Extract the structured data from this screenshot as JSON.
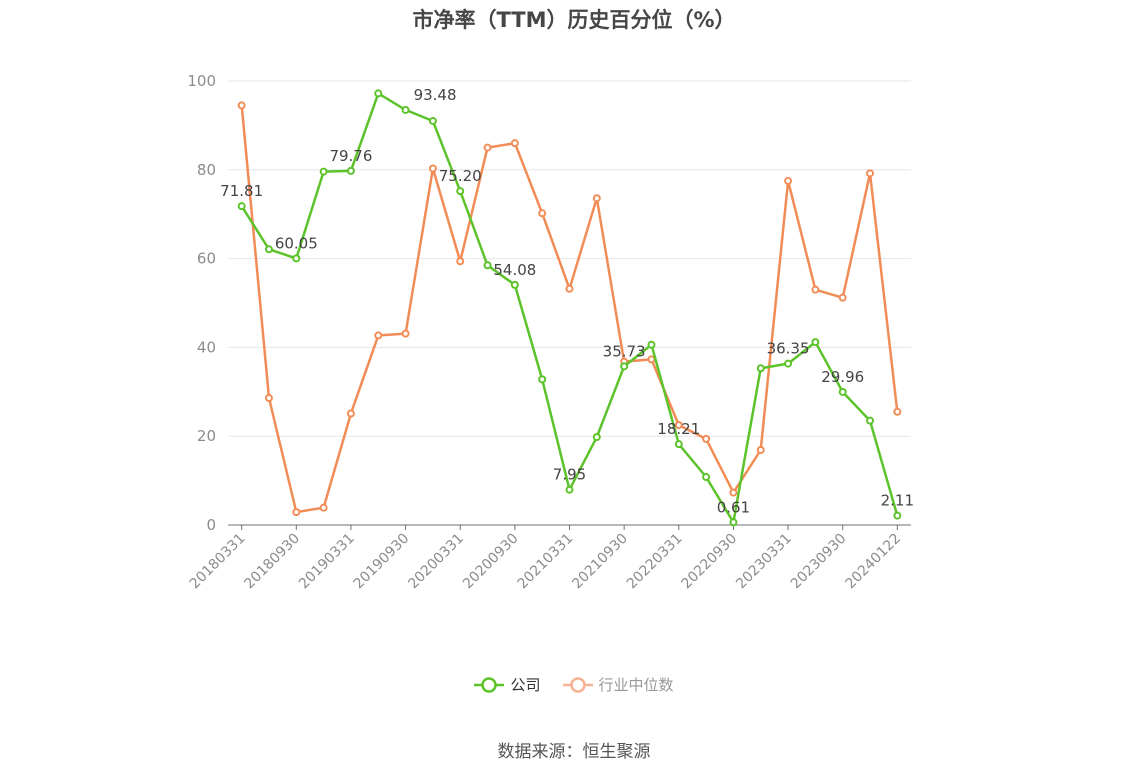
{
  "chart_data": {
    "type": "line",
    "title": "市净率（TTM）历史百分位（%）",
    "ylim": [
      0,
      100
    ],
    "y_ticks": [
      0,
      20,
      40,
      60,
      80,
      100
    ],
    "x": [
      "20180331",
      "20180630",
      "20180930",
      "20181231",
      "20190331",
      "20190630",
      "20190930",
      "20191231",
      "20200331",
      "20200630",
      "20200930",
      "20201231",
      "20210331",
      "20210630",
      "20210930",
      "20211231",
      "20220331",
      "20220630",
      "20220930",
      "20221231",
      "20230331",
      "20230630",
      "20230930",
      "20231231",
      "20240122"
    ],
    "x_tick_labels": [
      "20180331",
      "20180930",
      "20190331",
      "20190930",
      "20200331",
      "20200930",
      "20210331",
      "20210930",
      "20220331",
      "20220930",
      "20230331",
      "20230930",
      "20240122"
    ],
    "grid": true,
    "legend_position": "bottom",
    "series": [
      {
        "name": "公司",
        "color": "#5cc32b",
        "values": [
          71.81,
          62.1,
          60.05,
          79.6,
          79.76,
          97.2,
          93.48,
          91.0,
          75.2,
          58.5,
          54.08,
          32.8,
          7.95,
          19.8,
          35.73,
          40.6,
          18.21,
          10.8,
          0.61,
          35.3,
          36.35,
          41.2,
          29.96,
          23.5,
          2.11
        ],
        "labels": {
          "0": "71.81",
          "2": "60.05",
          "4": "79.76",
          "6": "93.48",
          "8": "75.20",
          "10": "54.08",
          "12": "7.95",
          "14": "35.73",
          "16": "18.21",
          "18": "0.61",
          "20": "36.35",
          "22": "29.96",
          "24": "2.11"
        }
      },
      {
        "name": "行业中位数",
        "color": "#f28c57",
        "values": [
          94.5,
          28.6,
          2.9,
          3.9,
          25.1,
          42.7,
          43.1,
          80.3,
          59.4,
          85.0,
          86.0,
          70.2,
          53.2,
          73.6,
          36.8,
          37.3,
          22.5,
          19.4,
          7.3,
          16.9,
          77.5,
          53.0,
          51.2,
          79.2,
          25.5
        ]
      }
    ]
  },
  "legend": [
    {
      "label": "公司",
      "color": "#5cc32b",
      "text_color": "#333333"
    },
    {
      "label": "行业中位数",
      "color": "#f7b193",
      "text_color": "#999999"
    }
  ],
  "source": "数据来源：恒生聚源"
}
